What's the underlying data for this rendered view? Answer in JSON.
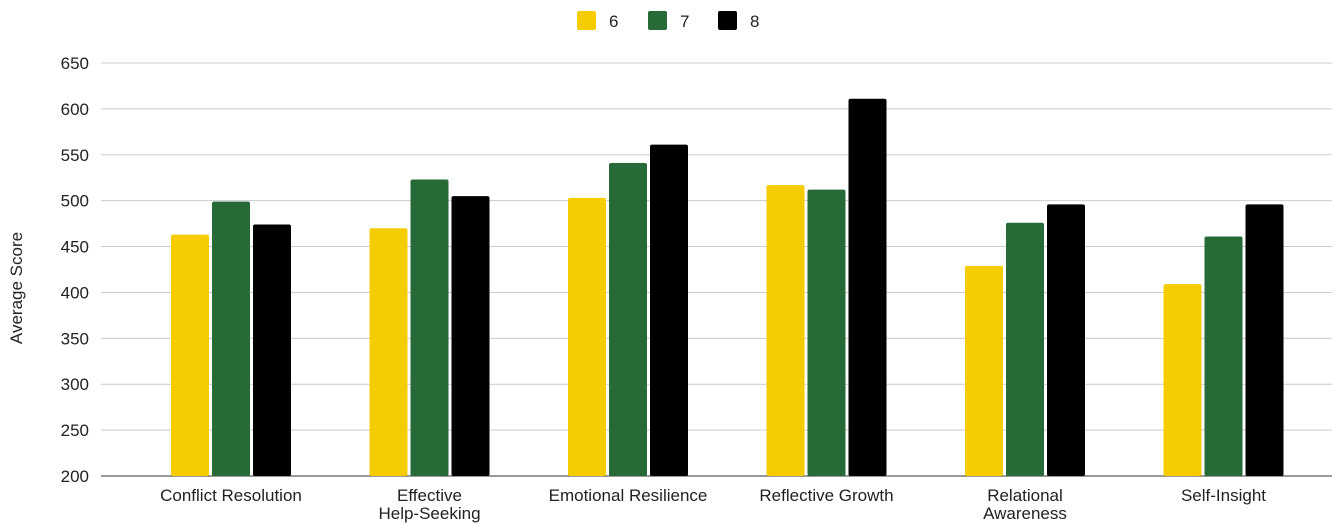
{
  "chart_data": {
    "type": "bar",
    "title": "",
    "xlabel": "",
    "ylabel": "Average Score",
    "ylim": [
      200,
      650
    ],
    "yticks": [
      200,
      250,
      300,
      350,
      400,
      450,
      500,
      550,
      600,
      650
    ],
    "grid": true,
    "legend_position": "top-center",
    "categories": [
      "Conflict Resolution",
      "Effective Help-Seeking",
      "Emotional Resilience",
      "Reflective Growth",
      "Relational Awareness",
      "Self-Insight"
    ],
    "category_label_lines": [
      [
        "Conflict Resolution"
      ],
      [
        "Effective",
        "Help-Seeking"
      ],
      [
        "Emotional Resilience"
      ],
      [
        "Reflective Growth"
      ],
      [
        "Relational",
        "Awareness"
      ],
      [
        "Self-Insight"
      ]
    ],
    "series": [
      {
        "name": "6",
        "color": "#f5cc00",
        "values": [
          463,
          470,
          503,
          517,
          429,
          409
        ]
      },
      {
        "name": "7",
        "color": "#276a37",
        "values": [
          499,
          523,
          541,
          512,
          476,
          461
        ]
      },
      {
        "name": "8",
        "color": "#000000",
        "values": [
          474,
          505,
          561,
          611,
          496,
          496
        ]
      }
    ]
  }
}
